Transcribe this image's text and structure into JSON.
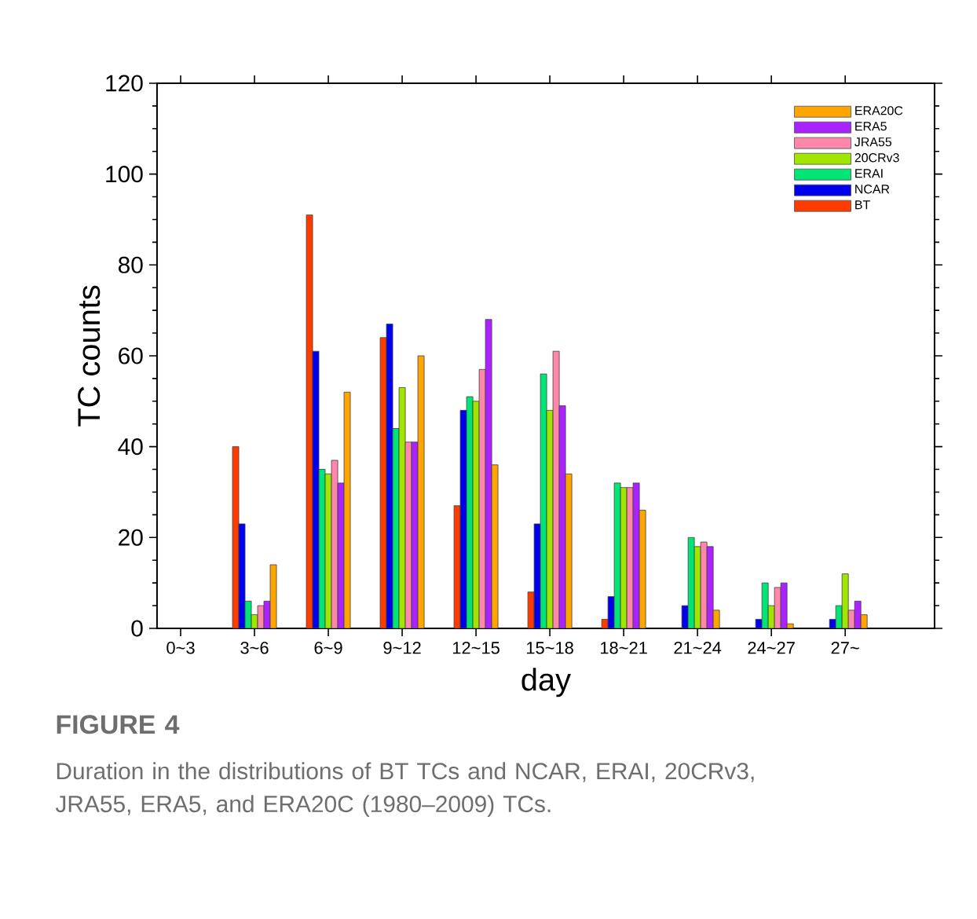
{
  "chart_data": {
    "type": "bar",
    "xlabel": "day",
    "ylabel": "TC counts",
    "categories": [
      "0~3",
      "3~6",
      "6~9",
      "9~12",
      "12~15",
      "15~18",
      "18~21",
      "21~24",
      "24~27",
      "27~"
    ],
    "series": [
      {
        "name": "BT",
        "color": "#ff3c00",
        "values": [
          0,
          40,
          91,
          64,
          27,
          8,
          2,
          0,
          0,
          0
        ]
      },
      {
        "name": "NCAR",
        "color": "#0000ee",
        "values": [
          0,
          23,
          61,
          67,
          48,
          23,
          7,
          5,
          2,
          2
        ]
      },
      {
        "name": "ERAI",
        "color": "#00e676",
        "values": [
          0,
          6,
          35,
          44,
          51,
          56,
          32,
          20,
          10,
          5
        ]
      },
      {
        "name": "20CRv3",
        "color": "#a0e600",
        "values": [
          0,
          3,
          34,
          53,
          50,
          48,
          31,
          18,
          5,
          12
        ]
      },
      {
        "name": "JRA55",
        "color": "#ff88aa",
        "values": [
          0,
          5,
          37,
          41,
          57,
          61,
          31,
          19,
          9,
          4
        ]
      },
      {
        "name": "ERA5",
        "color": "#aa22ff",
        "values": [
          0,
          6,
          32,
          41,
          68,
          49,
          32,
          18,
          10,
          6
        ]
      },
      {
        "name": "ERA20C",
        "color": "#ffa500",
        "values": [
          0,
          14,
          52,
          60,
          36,
          34,
          26,
          4,
          1,
          3
        ]
      }
    ],
    "ylim": [
      0,
      120
    ],
    "yticks": [
      0,
      20,
      40,
      60,
      80,
      100,
      120
    ],
    "legend": "top right",
    "annotations": [
      "**FIGURE 4**",
      "Duration in the distributions of BT TCs and NCAR, ERAI, 20CRv3, JRA55, ERA5, and ERA20C (1980–2009) TCs."
    ]
  }
}
